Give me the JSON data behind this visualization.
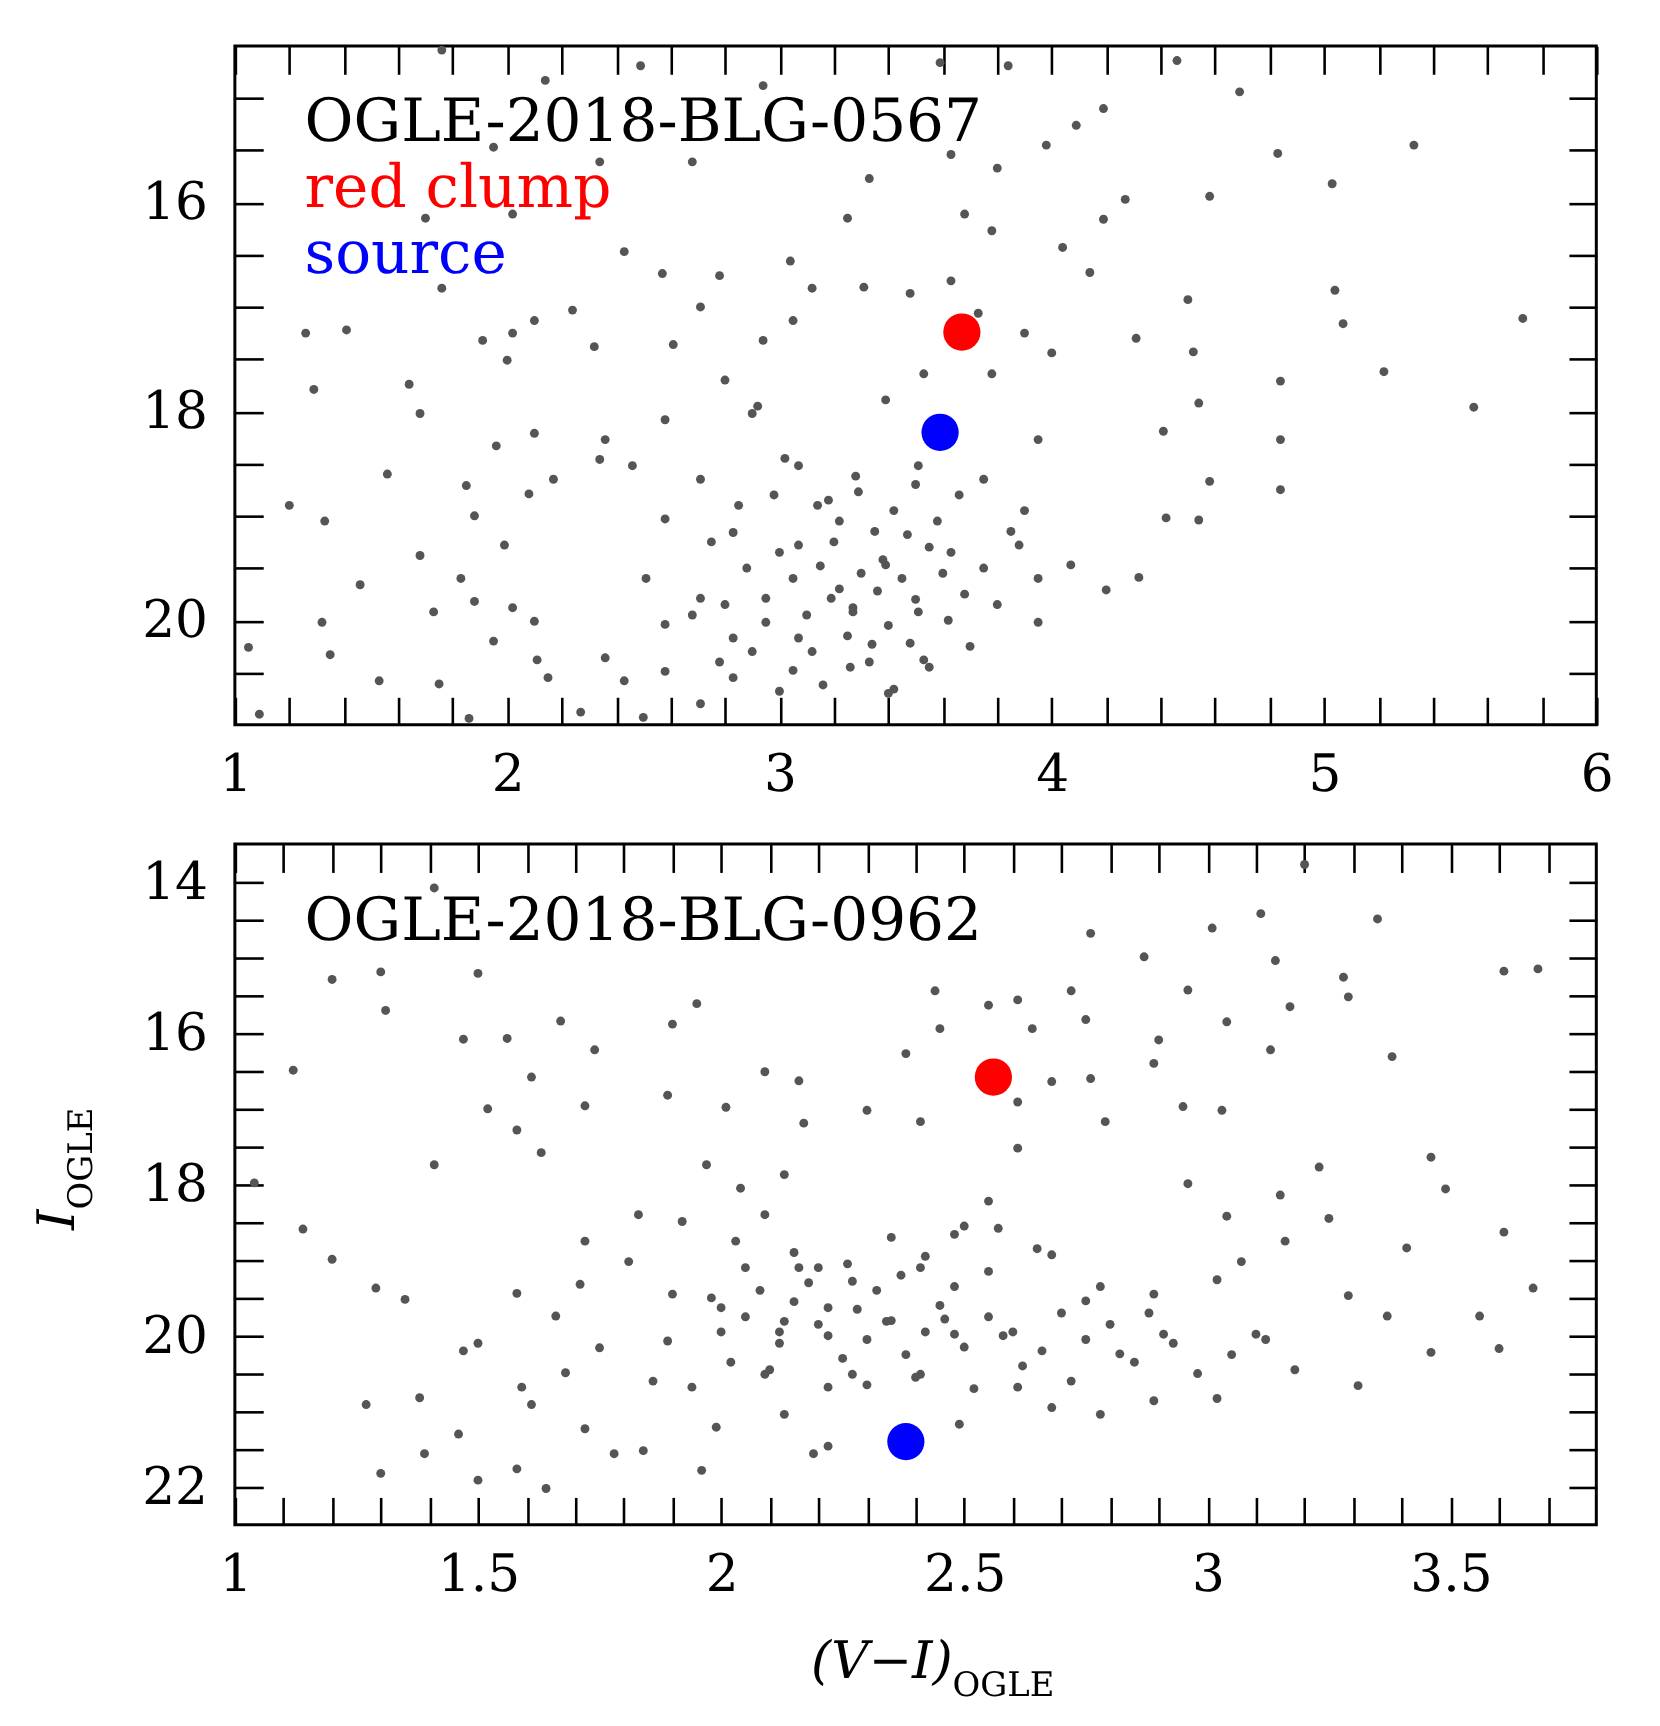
{
  "chart_data": [
    {
      "type": "scatter",
      "title": "OGLE-2018-BLG-0567",
      "xlim": [
        1,
        6
      ],
      "ylim": [
        21,
        14.5
      ],
      "xticks": [
        1,
        {
          "value": 1.2,
          "label": null
        },
        {
          "value": 1.4,
          "label": null
        },
        {
          "value": 1.6,
          "label": null
        },
        {
          "value": 1.8,
          "label": null
        },
        2,
        {
          "value": 2.2,
          "label": null
        },
        {
          "value": 2.4,
          "label": null
        },
        {
          "value": 2.6,
          "label": null
        },
        {
          "value": 2.8,
          "label": null
        },
        3,
        {
          "value": 3.2,
          "label": null
        },
        {
          "value": 3.4,
          "label": null
        },
        {
          "value": 3.6,
          "label": null
        },
        {
          "value": 3.8,
          "label": null
        },
        4,
        {
          "value": 4.2,
          "label": null
        },
        {
          "value": 4.4,
          "label": null
        },
        {
          "value": 4.6,
          "label": null
        },
        {
          "value": 4.8,
          "label": null
        },
        5,
        {
          "value": 5.2,
          "label": null
        },
        {
          "value": 5.4,
          "label": null
        },
        {
          "value": 5.6,
          "label": null
        },
        {
          "value": 5.8,
          "label": null
        },
        6
      ],
      "yticks": [
        {
          "value": 15,
          "label": null
        },
        {
          "value": 15.5,
          "label": null
        },
        16,
        {
          "value": 16.5,
          "label": null
        },
        {
          "value": 17,
          "label": null
        },
        {
          "value": 17.5,
          "label": null
        },
        18,
        {
          "value": 18.5,
          "label": null
        },
        {
          "value": 19,
          "label": null
        },
        {
          "value": 19.5,
          "label": null
        },
        20,
        {
          "value": 20.5,
          "label": null
        }
      ],
      "marker": "circle",
      "legend": "top left",
      "series": [
        {
          "color": "#555555",
          "x": [
            1.76,
            2.14,
            2.49,
            2.94,
            1.95,
            2.68,
            2.34,
            2.02,
            1.7,
            2.43,
            2.57,
            2.78,
            3.04,
            3.12,
            1.76,
            1.26,
            1.41,
            1.29,
            1.64,
            1.68,
            1.91,
            2.02,
            2.1,
            2.24,
            2.32,
            2.0,
            2.61,
            2.71,
            2.94,
            3.05,
            2.8,
            2.92,
            2.58,
            2.36,
            2.1,
            1.96,
            1.56,
            1.2,
            1.33,
            1.85,
            1.88,
            2.08,
            2.17,
            2.34,
            1.99,
            1.68,
            1.46,
            1.83,
            1.88,
            2.02,
            2.1,
            1.32,
            1.73,
            1.95,
            1.05,
            1.35,
            1.53,
            1.75,
            2.11,
            2.15,
            1.09,
            1.86,
            2.27,
            2.36,
            2.43,
            2.5,
            2.58,
            2.71,
            2.83,
            3.0,
            2.46,
            2.71,
            2.9,
            3.07,
            2.58,
            2.83,
            3.07,
            3.19,
            2.95,
            2.71,
            2.51,
            2.83,
            3.07,
            2.58,
            3.14,
            3.59,
            3.84,
            4.46,
            4.69,
            4.19,
            4.09,
            5.33,
            4.83,
            5.03,
            4.58,
            4.27,
            3.98,
            3.63,
            3.8,
            3.33,
            3.25,
            3.68,
            3.78,
            4.19,
            4.04,
            4.14,
            4.5,
            5.04,
            5.07,
            5.22,
            5.73,
            5.55,
            4.52,
            4.31,
            4.84,
            4.54,
            4.84,
            4.84,
            4.41,
            4.58,
            4.54,
            4.42,
            4.32,
            4.2,
            3.95,
            3.53,
            3.42,
            3.26,
            3.39,
            3.63,
            3.88,
            4.07,
            3.75,
            3.95,
            3.51,
            3.29,
            3.39,
            3.53,
            3.78,
            3.9,
            3.73,
            3.48,
            3.63,
            3.31,
            4.0,
            3.51,
            3.27,
            3.34,
            3.3,
            3.22,
            3.38,
            3.45,
            3.15,
            3.27,
            3.5,
            3.1,
            3.4,
            3.6,
            3.2,
            3.35,
            3.05,
            3.55,
            3.68,
            3.0,
            3.25,
            3.48,
            3.12,
            2.95,
            3.62,
            3.75,
            3.42,
            3.18,
            2.98,
            3.58,
            3.8,
            2.88,
            2.8,
            3.33,
            3.05,
            2.9,
            3.55,
            3.7,
            3.85,
            3.66,
            3.28,
            3.5,
            2.85,
            3.02,
            3.9,
            3.95,
            2.75,
            2.68,
            3.16,
            3.4,
            2.78,
            3.36,
            3.22,
            3.47
          ],
          "values": [
            14.54,
            14.83,
            14.69,
            14.88,
            15.47,
            15.61,
            15.61,
            16.11,
            16.15,
            16.47,
            16.68,
            16.7,
            16.56,
            16.82,
            16.82,
            17.25,
            17.22,
            17.79,
            17.74,
            18.02,
            17.32,
            17.25,
            17.13,
            17.03,
            17.38,
            17.51,
            17.36,
            17.0,
            17.32,
            17.13,
            17.7,
            17.95,
            18.08,
            18.27,
            18.21,
            18.33,
            18.6,
            18.9,
            19.05,
            18.71,
            19.0,
            18.79,
            18.65,
            18.46,
            19.28,
            19.38,
            19.66,
            19.6,
            19.82,
            19.88,
            20.01,
            20.02,
            19.92,
            20.2,
            20.26,
            20.33,
            20.58,
            20.61,
            20.38,
            20.55,
            20.9,
            20.94,
            20.88,
            20.36,
            20.58,
            20.93,
            20.49,
            20.8,
            20.55,
            20.68,
            18.52,
            18.65,
            18.02,
            18.52,
            19.03,
            19.16,
            19.28,
            19.79,
            19.79,
            19.79,
            19.6,
            20.17,
            20.17,
            20.04,
            18.9,
            14.66,
            14.69,
            14.64,
            14.94,
            15.1,
            15.26,
            15.45,
            15.53,
            15.82,
            15.94,
            15.97,
            15.45,
            15.54,
            15.67,
            15.77,
            16.15,
            16.11,
            16.27,
            16.16,
            16.43,
            16.67,
            16.93,
            16.84,
            17.16,
            17.62,
            17.11,
            17.96,
            17.43,
            17.3,
            17.71,
            17.92,
            18.27,
            18.75,
            18.19,
            18.67,
            19.04,
            19.02,
            19.59,
            19.71,
            20.02,
            20.38,
            20.66,
            20.45,
            19.47,
            19.35,
            19.28,
            19.47,
            18.65,
            18.27,
            18.52,
            18.77,
            17.89,
            17.64,
            17.64,
            17.25,
            17.06,
            16.87,
            16.75,
            16.81,
            17.44,
            19.92,
            19.92,
            20.23,
            19.55,
            19.7,
            19.42,
            19.6,
            19.48,
            19.88,
            19.8,
            19.95,
            20.05,
            19.55,
            19.25,
            19.15,
            19.6,
            19.3,
            19.75,
            19.35,
            20.15,
            20.22,
            20.3,
            20.02,
            20.0,
            19.5,
            18.95,
            18.85,
            18.8,
            19.05,
            19.85,
            19.5,
            19.85,
            20.4,
            20.48,
            20.3,
            20.45,
            20.25,
            19.15,
            18.8,
            18.62,
            18.7,
            18.9,
            18.45,
            18.95,
            19.6,
            19.25,
            19.95,
            20.62,
            20.7,
            20.4,
            19.72,
            19.05,
            19.18
          ]
        },
        {
          "name": "red clump",
          "color": "#ff0000",
          "x": [
            3.67
          ],
          "values": [
            17.24
          ]
        },
        {
          "name": "source",
          "color": "#0000ff",
          "x": [
            3.59
          ],
          "values": [
            18.2
          ]
        }
      ]
    },
    {
      "type": "scatter",
      "title": "OGLE-2018-BLG-0962",
      "xlabel": "(V−I)$_{OGLE}$",
      "ylabel": "I$_{OGLE}$",
      "xlim": [
        1,
        3.8
      ],
      "ylim": [
        22.5,
        13.5
      ],
      "xticks": [
        1,
        {
          "value": 1.1,
          "label": null
        },
        {
          "value": 1.2,
          "label": null
        },
        {
          "value": 1.3,
          "label": null
        },
        {
          "value": 1.4,
          "label": null
        },
        1.5,
        {
          "value": 1.6,
          "label": null
        },
        {
          "value": 1.7,
          "label": null
        },
        {
          "value": 1.8,
          "label": null
        },
        {
          "value": 1.9,
          "label": null
        },
        2,
        {
          "value": 2.1,
          "label": null
        },
        {
          "value": 2.2,
          "label": null
        },
        {
          "value": 2.3,
          "label": null
        },
        {
          "value": 2.4,
          "label": null
        },
        2.5,
        {
          "value": 2.6,
          "label": null
        },
        {
          "value": 2.7,
          "label": null
        },
        {
          "value": 2.8,
          "label": null
        },
        {
          "value": 2.9,
          "label": null
        },
        3,
        {
          "value": 3.1,
          "label": null
        },
        {
          "value": 3.2,
          "label": null
        },
        {
          "value": 3.3,
          "label": null
        },
        {
          "value": 3.4,
          "label": null
        },
        3.5,
        {
          "value": 3.6,
          "label": null
        },
        {
          "value": 3.7,
          "label": null
        }
      ],
      "yticks": [
        14,
        {
          "value": 14.5,
          "label": null
        },
        {
          "value": 15,
          "label": null
        },
        {
          "value": 15.5,
          "label": null
        },
        16,
        {
          "value": 16.5,
          "label": null
        },
        {
          "value": 17,
          "label": null
        },
        {
          "value": 17.5,
          "label": null
        },
        18,
        {
          "value": 18.5,
          "label": null
        },
        {
          "value": 19,
          "label": null
        },
        {
          "value": 19.5,
          "label": null
        },
        20,
        {
          "value": 20.5,
          "label": null
        },
        {
          "value": 21,
          "label": null
        },
        {
          "value": 21.5,
          "label": null
        },
        22
      ],
      "marker": "circle",
      "series": [
        {
          "color": "#555555",
          "x": [
            1.41,
            1.2,
            1.3,
            1.31,
            1.5,
            1.12,
            1.47,
            1.56,
            1.67,
            1.74,
            1.9,
            1.95,
            2.09,
            2.16,
            1.52,
            1.61,
            1.58,
            1.63,
            1.72,
            1.89,
            2.01,
            2.17,
            1.41,
            1.04,
            1.14,
            1.2,
            1.29,
            1.35,
            1.47,
            1.5,
            1.58,
            1.66,
            1.59,
            1.61,
            1.46,
            1.38,
            1.39,
            1.27,
            1.3,
            1.5,
            1.58,
            1.64,
            1.68,
            1.72,
            1.78,
            1.75,
            1.81,
            1.83,
            1.72,
            1.71,
            1.84,
            1.96,
            1.99,
            1.94,
            1.86,
            1.89,
            1.9,
            1.92,
            1.97,
            2.04,
            2.03,
            2.0,
            2.05,
            2.09,
            2.13,
            2.16,
            2.13,
            2.09,
            2.13,
            2.19,
            2.22,
            2.22,
            2.2,
            3.2,
            3.11,
            3.35,
            3.01,
            2.76,
            2.87,
            3.14,
            3.61,
            3.68,
            3.28,
            3.29,
            2.96,
            2.72,
            2.44,
            2.61,
            2.55,
            3.17,
            3.04,
            3.13,
            3.38,
            2.9,
            2.75,
            2.64,
            2.45,
            2.38,
            2.89,
            2.76,
            2.68,
            2.95,
            3.03,
            2.79,
            2.61,
            2.41,
            2.3,
            3.23,
            3.46,
            3.49,
            3.15,
            2.96,
            3.04,
            3.25,
            3.61,
            3.41,
            3.16,
            3.67,
            3.37,
            3.56,
            3.46,
            3.6,
            3.31,
            3.18,
            3.29,
            3.07,
            3.02,
            3.1,
            3.02,
            2.89,
            2.78,
            2.68,
            2.49,
            2.22,
            2.34,
            2.27,
            2.41,
            2.48,
            2.55,
            2.61,
            2.57,
            2.68,
            2.75,
            2.89,
            2.91,
            2.82,
            2.61,
            2.48,
            2.41,
            2.27,
            2.35,
            2.28,
            2.42,
            2.2,
            2.3,
            2.45,
            2.15,
            2.38,
            2.25,
            2.5,
            2.12,
            2.05,
            2.55,
            2.32,
            2.18,
            2.48,
            2.6,
            2.4,
            2.1,
            2.62,
            2.0,
            2.08,
            2.26,
            2.42,
            2.55,
            2.7,
            2.66,
            2.75,
            2.8,
            2.85,
            2.93,
            2.98,
            3.05,
            2.72,
            2.52,
            2.3,
            2.02,
            1.98,
            2.15,
            2.35,
            2.5,
            2.65,
            2.37,
            2.22,
            2.46,
            2.58,
            2.88,
            3.12,
            2.78,
            2.12
          ],
          "values": [
            14.08,
            15.29,
            15.19,
            15.7,
            15.21,
            16.49,
            16.08,
            16.07,
            15.84,
            16.22,
            15.88,
            15.61,
            16.51,
            16.63,
            17.0,
            16.58,
            17.28,
            17.58,
            16.96,
            16.82,
            16.98,
            17.19,
            17.74,
            17.98,
            18.59,
            18.99,
            19.37,
            19.52,
            20.2,
            20.1,
            19.44,
            19.74,
            20.68,
            20.91,
            21.3,
            20.82,
            21.56,
            20.91,
            21.82,
            21.91,
            21.76,
            22.02,
            20.49,
            21.23,
            21.56,
            20.16,
            19.02,
            18.4,
            18.75,
            19.32,
            21.52,
            21.78,
            21.21,
            20.68,
            20.6,
            20.07,
            19.45,
            18.49,
            17.74,
            18.05,
            18.75,
            19.63,
            19.1,
            18.4,
            17.87,
            19.1,
            19.81,
            20.51,
            21.04,
            21.56,
            20.68,
            19.63,
            19.1,
            13.77,
            14.42,
            14.49,
            14.61,
            14.68,
            14.99,
            15.04,
            15.18,
            15.15,
            15.26,
            15.52,
            15.43,
            15.44,
            15.44,
            15.56,
            15.63,
            15.65,
            15.85,
            16.22,
            16.31,
            16.09,
            15.82,
            15.94,
            15.94,
            16.27,
            16.4,
            16.6,
            16.64,
            16.97,
            17.02,
            17.17,
            16.91,
            17.17,
            17.02,
            17.77,
            17.64,
            18.06,
            18.14,
            17.99,
            18.42,
            18.45,
            18.63,
            18.84,
            18.75,
            19.37,
            19.74,
            19.74,
            20.22,
            20.17,
            20.66,
            20.45,
            19.47,
            19.02,
            19.26,
            19.98,
            20.83,
            20.86,
            21.04,
            20.95,
            21.17,
            21.46,
            19.81,
            19.28,
            19.1,
            18.66,
            18.22,
            17.52,
            18.58,
            18.93,
            19.54,
            19.45,
            19.98,
            20.24,
            20.68,
            19.98,
            20.51,
            20.51,
            19.8,
            19.65,
            19.95,
            19.85,
            20.05,
            19.6,
            19.55,
            20.25,
            20.3,
            20.15,
            20.1,
            19.75,
            19.75,
            19.4,
            19.3,
            19.35,
            19.95,
            20.55,
            20.45,
            20.4,
            19.95,
            19.4,
            19.05,
            18.95,
            19.15,
            19.7,
            20.2,
            20.05,
            19.85,
            20.35,
            20.1,
            20.5,
            20.25,
            20.6,
            20.7,
            20.65,
            20.35,
            19.5,
            18.9,
            18.7,
            18.55,
            18.85,
            19.2,
            20.0,
            19.78,
            20.0,
            19.7,
            20.05,
            19.35,
            19.95
          ]
        },
        {
          "color": "#ff0000",
          "x": [
            2.56
          ],
          "values": [
            16.58
          ]
        },
        {
          "color": "#0000ff",
          "x": [
            2.38
          ],
          "values": [
            21.4
          ]
        }
      ]
    }
  ]
}
